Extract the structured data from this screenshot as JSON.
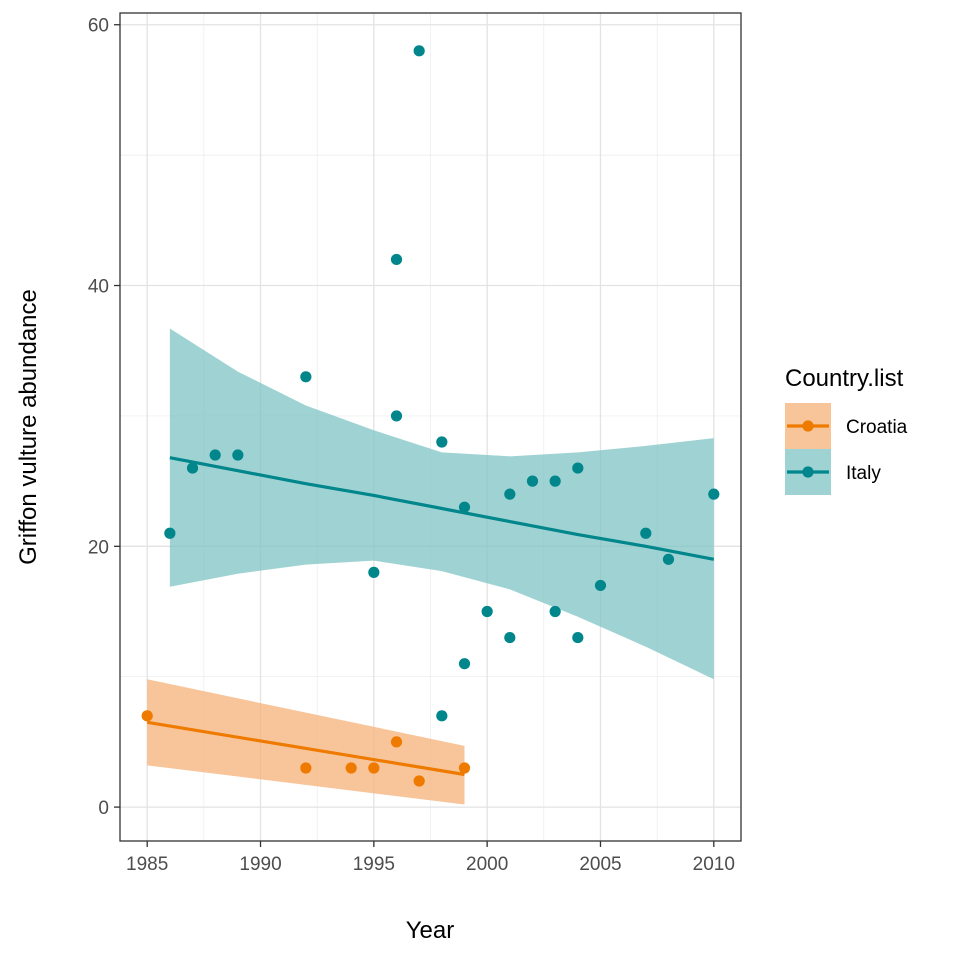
{
  "chart_data": {
    "type": "scatter",
    "title": "",
    "xlabel": "Year",
    "ylabel": "Griffon vulture abundance",
    "xlim": [
      1983.8,
      2011.2
    ],
    "ylim": [
      -2.6,
      60.9
    ],
    "xticks": [
      1985,
      1990,
      1995,
      2000,
      2005,
      2010
    ],
    "yticks": [
      0,
      20,
      40,
      60
    ],
    "grid": true,
    "legend": {
      "title": "Country.list",
      "position": "right"
    },
    "series": [
      {
        "name": "Croatia",
        "color": "#ef7a00",
        "ribbon_color": "#f5b27a",
        "x": [
          1985,
          1992,
          1994,
          1995,
          1996,
          1997,
          1999
        ],
        "y": [
          7,
          3,
          3,
          3,
          5,
          2,
          3
        ],
        "trend": {
          "x": [
            1985,
            1999
          ],
          "fit": [
            6.5,
            2.5
          ],
          "lower": [
            3.2,
            0.2
          ],
          "upper": [
            9.8,
            4.7
          ]
        }
      },
      {
        "name": "Italy",
        "color": "#00868b",
        "ribbon_color": "#7fc4c4",
        "x": [
          1986,
          1987,
          1988,
          1989,
          1992,
          1995,
          1996,
          1996,
          1997,
          1998,
          1998,
          1999,
          1999,
          2000,
          2001,
          2001,
          2002,
          2003,
          2003,
          2004,
          2004,
          2005,
          2007,
          2008,
          2010
        ],
        "y": [
          21,
          26,
          27,
          27,
          33,
          18,
          42,
          30,
          58,
          28,
          7,
          23,
          11,
          15,
          24,
          13,
          25,
          25,
          15,
          26,
          13,
          17,
          21,
          19,
          24
        ],
        "trend": {
          "x": [
            1986,
            1989,
            1992,
            1995,
            1998,
            2001,
            2004,
            2007,
            2010
          ],
          "fit": [
            26.8,
            25.8,
            24.8,
            23.9,
            22.9,
            21.9,
            20.9,
            20.0,
            19.0
          ],
          "lower": [
            16.9,
            17.9,
            18.6,
            18.9,
            18.1,
            16.7,
            14.6,
            12.3,
            9.8
          ],
          "upper": [
            36.7,
            33.4,
            30.8,
            28.9,
            27.2,
            26.9,
            27.2,
            27.7,
            28.3
          ]
        }
      }
    ]
  }
}
